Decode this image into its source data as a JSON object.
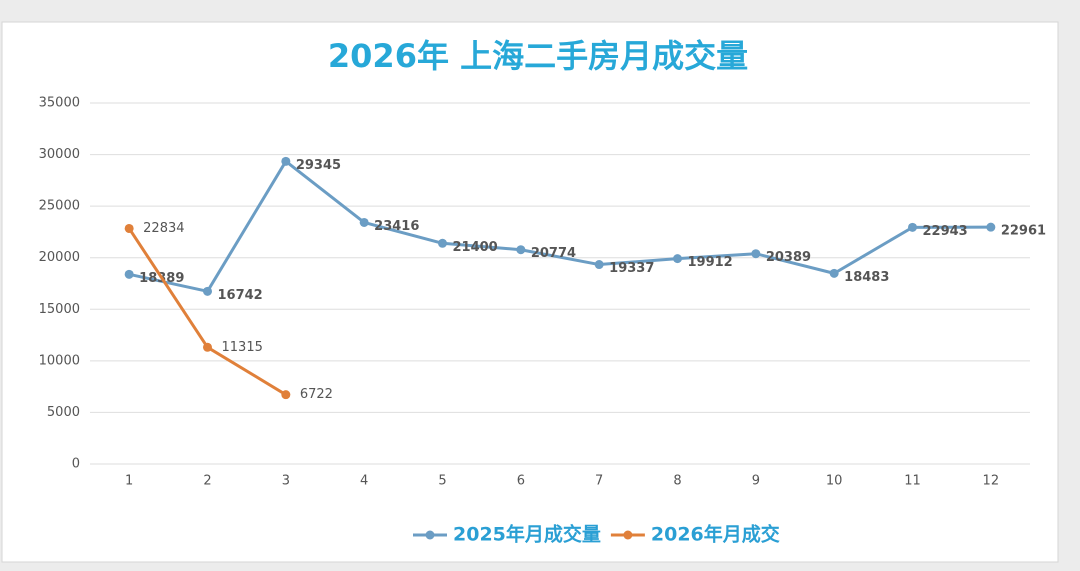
{
  "chart_data": {
    "type": "line",
    "title": "2026年 上海二手房月成交量",
    "categories": [
      "1",
      "2",
      "3",
      "4",
      "5",
      "6",
      "7",
      "8",
      "9",
      "10",
      "11",
      "12"
    ],
    "series": [
      {
        "name": "2025年月成交量",
        "color": "#6b9dc4",
        "label_color": "#1fa84a",
        "values": [
          18389,
          16742,
          29345,
          23416,
          21400,
          20774,
          19337,
          19912,
          20389,
          18483,
          22943,
          22961
        ]
      },
      {
        "name": "2026年月成交",
        "color": "#e0803a",
        "label_color": "#444444",
        "values": [
          22834,
          11315,
          6722,
          null,
          null,
          null,
          null,
          null,
          null,
          null,
          null,
          null
        ]
      }
    ],
    "ylim": [
      0,
      35000
    ],
    "yticks": [
      0,
      5000,
      10000,
      15000,
      20000,
      25000,
      30000,
      35000
    ],
    "grid": true,
    "legend": "bottom"
  }
}
